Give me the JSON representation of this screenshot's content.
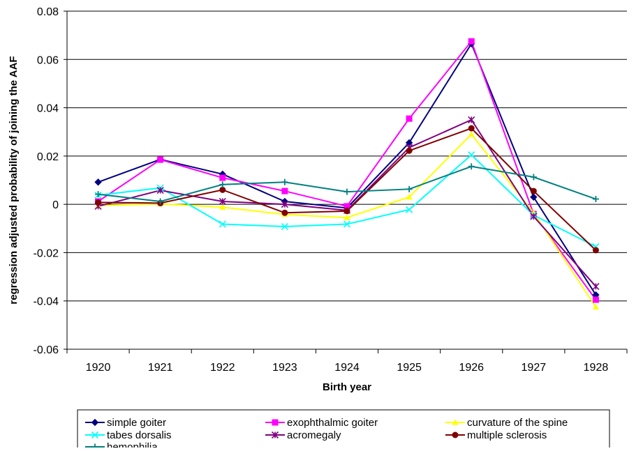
{
  "chart_data": {
    "type": "line",
    "title": "",
    "xlabel": "Birth year",
    "ylabel": "regression adjusted probability of joining the AAF",
    "categories": [
      "1920",
      "1921",
      "1922",
      "1923",
      "1924",
      "1925",
      "1926",
      "1927",
      "1928"
    ],
    "ylim": [
      -0.06,
      0.08
    ],
    "yticks": [
      -0.06,
      -0.04,
      -0.02,
      0,
      0.02,
      0.04,
      0.06,
      0.08
    ],
    "ytick_labels": [
      "-0.06",
      "-0.04",
      "-0.02",
      "0",
      "0.02",
      "0.04",
      "0.06",
      "0.08"
    ],
    "grid": "horizontal",
    "legend_position": "bottom",
    "series": [
      {
        "name": "simple goiter",
        "color": "#000080",
        "marker": "diamond",
        "values": [
          0.0092,
          0.0186,
          0.0125,
          0.0012,
          -0.0015,
          0.0255,
          0.0665,
          0.003,
          -0.0375
        ]
      },
      {
        "name": "exophthalmic goiter",
        "color": "#ff00ff",
        "marker": "square",
        "values": [
          0.0012,
          0.0185,
          0.011,
          0.0055,
          -0.0008,
          0.0355,
          0.0675,
          -0.004,
          -0.0395
        ]
      },
      {
        "name": "curvature of the spine",
        "color": "#ffff00",
        "marker": "triangle",
        "values": [
          -0.0005,
          0.0002,
          -0.0012,
          -0.0042,
          -0.0055,
          0.003,
          0.029,
          -0.0035,
          -0.0425
        ]
      },
      {
        "name": "tabes dorsalis",
        "color": "#00ffff",
        "marker": "x",
        "values": [
          0.0038,
          0.0068,
          -0.0082,
          -0.0092,
          -0.0082,
          -0.0022,
          0.0205,
          -0.0045,
          -0.0175
        ]
      },
      {
        "name": "acromegaly",
        "color": "#800080",
        "marker": "star",
        "values": [
          -0.0008,
          0.0058,
          0.0012,
          0.0,
          -0.0025,
          0.0235,
          0.035,
          -0.005,
          -0.034
        ]
      },
      {
        "name": "multiple sclerosis",
        "color": "#800000",
        "marker": "circle",
        "values": [
          0.0008,
          0.0005,
          0.006,
          -0.0035,
          -0.0028,
          0.0222,
          0.0315,
          0.0055,
          -0.019
        ]
      },
      {
        "name": "hemophilia",
        "color": "#008080",
        "marker": "plus",
        "values": [
          0.0042,
          0.0012,
          0.0082,
          0.0092,
          0.0052,
          0.0063,
          0.0157,
          0.0113,
          0.0022
        ]
      }
    ]
  }
}
